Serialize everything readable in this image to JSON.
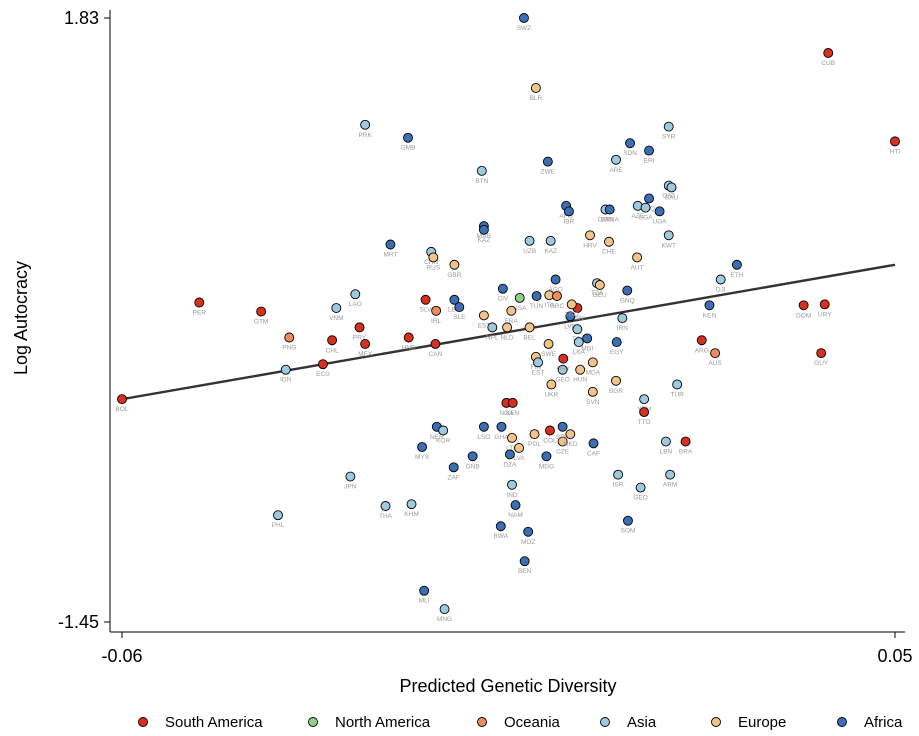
{
  "colors": {
    "South America": "#d7301f",
    "North America": "#8fd18b",
    "Oceania": "#f08c5a",
    "Asia": "#9ecae1",
    "Europe": "#f2c48a",
    "Africa": "#3a6fb5"
  },
  "chart_data": {
    "type": "scatter",
    "title": "",
    "xlabel": "Predicted Genetic Diversity",
    "ylabel": "Log Autocracy",
    "xlim": [
      -0.06,
      0.05
    ],
    "ylim": [
      -1.45,
      1.83
    ],
    "x_ticks": [
      "-0.06",
      "0.05"
    ],
    "y_ticks": [
      "1.83",
      "-1.45"
    ],
    "grid": false,
    "legend_position": "bottom",
    "legend": [
      "South America",
      "North America",
      "Oceania",
      "Asia",
      "Europe",
      "Africa"
    ],
    "fit_line": {
      "x": [
        -0.06,
        0.05
      ],
      "y": [
        -0.24,
        0.49
      ]
    },
    "points": [
      {
        "label": "BOL",
        "region": "South America",
        "x": -0.06,
        "y": -0.24
      },
      {
        "label": "PER",
        "region": "South America",
        "x": -0.049,
        "y": 0.285
      },
      {
        "label": "GTM",
        "region": "South America",
        "x": -0.0402,
        "y": 0.236
      },
      {
        "label": "PNG",
        "region": "Oceania",
        "x": -0.0362,
        "y": 0.095
      },
      {
        "label": "IDN",
        "region": "Asia",
        "x": -0.0367,
        "y": -0.08
      },
      {
        "label": "PHL",
        "region": "Asia",
        "x": -0.0378,
        "y": -0.87
      },
      {
        "label": "ECU",
        "region": "South America",
        "x": -0.0314,
        "y": -0.05
      },
      {
        "label": "CHL",
        "region": "South America",
        "x": -0.0301,
        "y": 0.08
      },
      {
        "label": "VNM",
        "region": "Asia",
        "x": -0.0295,
        "y": 0.255
      },
      {
        "label": "LAO",
        "region": "Asia",
        "x": -0.0268,
        "y": 0.33
      },
      {
        "label": "PRY",
        "region": "South America",
        "x": -0.0262,
        "y": 0.15
      },
      {
        "label": "JPN",
        "region": "Asia",
        "x": -0.0275,
        "y": -0.66
      },
      {
        "label": "MEX",
        "region": "South America",
        "x": -0.0254,
        "y": 0.06
      },
      {
        "label": "PRK",
        "region": "Asia",
        "x": -0.0254,
        "y": 1.25
      },
      {
        "label": "THA",
        "region": "Asia",
        "x": -0.0225,
        "y": -0.82
      },
      {
        "label": "MRT",
        "region": "Africa",
        "x": -0.0218,
        "y": 0.6
      },
      {
        "label": "GMB",
        "region": "Africa",
        "x": -0.0193,
        "y": 1.18
      },
      {
        "label": "HND",
        "region": "South America",
        "x": -0.0192,
        "y": 0.095
      },
      {
        "label": "SLV",
        "region": "South America",
        "x": -0.0168,
        "y": 0.3
      },
      {
        "label": "CHN",
        "region": "Asia",
        "x": -0.016,
        "y": 0.56
      },
      {
        "label": "RUS",
        "region": "Europe",
        "x": -0.0157,
        "y": 0.53
      },
      {
        "label": "IRL",
        "region": "Oceania",
        "x": -0.0153,
        "y": 0.24
      },
      {
        "label": "LBR",
        "region": "Africa",
        "x": -0.0127,
        "y": 0.3
      },
      {
        "label": "NER",
        "region": "Africa",
        "x": -0.0152,
        "y": -0.39
      },
      {
        "label": "MYS",
        "region": "Africa",
        "x": -0.0173,
        "y": -0.5
      },
      {
        "label": "KHM",
        "region": "Asia",
        "x": -0.0188,
        "y": -0.81
      },
      {
        "label": "ZAF",
        "region": "Africa",
        "x": -0.0128,
        "y": -0.61
      },
      {
        "label": "KOR",
        "region": "Asia",
        "x": -0.0143,
        "y": -0.41
      },
      {
        "label": "GNB",
        "region": "Africa",
        "x": -0.0101,
        "y": -0.55
      },
      {
        "label": "GBR",
        "region": "Europe",
        "x": -0.0127,
        "y": 0.49
      },
      {
        "label": "SLE",
        "region": "Africa",
        "x": -0.012,
        "y": 0.26
      },
      {
        "label": "CAN",
        "region": "South America",
        "x": -0.0154,
        "y": 0.06
      },
      {
        "label": "BTN",
        "region": "Asia",
        "x": -0.0088,
        "y": 1.0
      },
      {
        "label": "MAR",
        "region": "Africa",
        "x": -0.0085,
        "y": 0.7
      },
      {
        "label": "KAZ2",
        "region": "Africa",
        "x": -0.0085,
        "y": 0.68
      },
      {
        "label": "EST2",
        "region": "Europe",
        "x": -0.0085,
        "y": 0.215
      },
      {
        "label": "LSO",
        "region": "Africa",
        "x": -0.0085,
        "y": -0.39
      },
      {
        "label": "GHA",
        "region": "Africa",
        "x": -0.006,
        "y": -0.39
      },
      {
        "label": "NPL",
        "region": "Asia",
        "x": -0.0073,
        "y": 0.15
      },
      {
        "label": "NLD",
        "region": "Europe",
        "x": -0.0052,
        "y": 0.15
      },
      {
        "label": "CIV",
        "region": "Africa",
        "x": -0.0058,
        "y": 0.36
      },
      {
        "label": "NGA",
        "region": "South America",
        "x": -0.0053,
        "y": -0.26
      },
      {
        "label": "KEN2",
        "region": "South America",
        "x": -0.0044,
        "y": -0.26
      },
      {
        "label": "LTU",
        "region": "Europe",
        "x": -0.0045,
        "y": -0.45
      },
      {
        "label": "LVA",
        "region": "Europe",
        "x": -0.0035,
        "y": -0.505
      },
      {
        "label": "DZA",
        "region": "Africa",
        "x": -0.0048,
        "y": -0.54
      },
      {
        "label": "IND",
        "region": "Asia",
        "x": -0.0045,
        "y": -0.705
      },
      {
        "label": "NAM",
        "region": "Africa",
        "x": -0.004,
        "y": -0.815
      },
      {
        "label": "BWA",
        "region": "Africa",
        "x": -0.0061,
        "y": -0.93
      },
      {
        "label": "MOZ",
        "region": "Africa",
        "x": -0.0022,
        "y": -0.96
      },
      {
        "label": "BEN",
        "region": "Africa",
        "x": -0.0027,
        "y": -1.12
      },
      {
        "label": "MLI",
        "region": "Africa",
        "x": -0.017,
        "y": -1.28
      },
      {
        "label": "MNG",
        "region": "Asia",
        "x": -0.0141,
        "y": -1.38
      },
      {
        "label": "SWZ",
        "region": "Africa",
        "x": -0.0028,
        "y": 1.83
      },
      {
        "label": "BLR",
        "region": "Europe",
        "x": -0.0011,
        "y": 1.45
      },
      {
        "label": "ZWE",
        "region": "Africa",
        "x": 0.0006,
        "y": 1.05
      },
      {
        "label": "UZB",
        "region": "Asia",
        "x": -0.002,
        "y": 0.62
      },
      {
        "label": "KAZ",
        "region": "Asia",
        "x": 0.001,
        "y": 0.62
      },
      {
        "label": "USA",
        "region": "North America",
        "x": -0.0034,
        "y": 0.31
      },
      {
        "label": "FRA",
        "region": "Europe",
        "x": -0.0046,
        "y": 0.24
      },
      {
        "label": "TUN",
        "region": "Africa",
        "x": -0.001,
        "y": 0.32
      },
      {
        "label": "BEL",
        "region": "Europe",
        "x": -0.002,
        "y": 0.15
      },
      {
        "label": "AGO",
        "region": "Africa",
        "x": 0.0017,
        "y": 0.41
      },
      {
        "label": "ITA",
        "region": "Europe",
        "x": 0.0008,
        "y": 0.325
      },
      {
        "label": "GRC",
        "region": "Oceania",
        "x": 0.0019,
        "y": 0.32
      },
      {
        "label": "AFG",
        "region": "Africa",
        "x": 0.0032,
        "y": 0.81
      },
      {
        "label": "IBR",
        "region": "Africa",
        "x": 0.0036,
        "y": 0.78
      },
      {
        "label": "SWE",
        "region": "Europe",
        "x": 0.0007,
        "y": 0.06
      },
      {
        "label": "FIN",
        "region": "Europe",
        "x": -0.0011,
        "y": -0.01
      },
      {
        "label": "EST",
        "region": "Asia",
        "x": -0.0008,
        "y": -0.04
      },
      {
        "label": "GEO2",
        "region": "Asia",
        "x": 0.0027,
        "y": -0.08
      },
      {
        "label": "URY2",
        "region": "South America",
        "x": 0.0028,
        "y": -0.02
      },
      {
        "label": "UKR",
        "region": "Europe",
        "x": 0.0011,
        "y": -0.16
      },
      {
        "label": "COL",
        "region": "South America",
        "x": 0.0009,
        "y": -0.41
      },
      {
        "label": "POL",
        "region": "Europe",
        "x": -0.0013,
        "y": -0.43
      },
      {
        "label": "MDG",
        "region": "Africa",
        "x": 0.0004,
        "y": -0.55
      },
      {
        "label": "CZE",
        "region": "Europe",
        "x": 0.0027,
        "y": -0.47
      },
      {
        "label": "SRB",
        "region": "Africa",
        "x": 0.0027,
        "y": -0.39
      },
      {
        "label": "MKD",
        "region": "Europe",
        "x": 0.0038,
        "y": -0.43
      },
      {
        "label": "LSN",
        "region": "South America",
        "x": 0.0048,
        "y": 0.255
      },
      {
        "label": "LVR",
        "region": "Africa",
        "x": 0.0038,
        "y": 0.21
      },
      {
        "label": "TGO",
        "region": "Europe",
        "x": 0.004,
        "y": 0.275
      },
      {
        "label": "MDI",
        "region": "Africa",
        "x": 0.0062,
        "y": 0.09
      },
      {
        "label": "TGI",
        "region": "Asia",
        "x": 0.0048,
        "y": 0.14
      },
      {
        "label": "LKA",
        "region": "Asia",
        "x": 0.005,
        "y": 0.07
      },
      {
        "label": "HUN",
        "region": "Europe",
        "x": 0.0052,
        "y": -0.08
      },
      {
        "label": "SVN",
        "region": "Europe",
        "x": 0.007,
        "y": -0.2
      },
      {
        "label": "MDA",
        "region": "Europe",
        "x": 0.007,
        "y": -0.04
      },
      {
        "label": "CAF",
        "region": "Africa",
        "x": 0.0071,
        "y": -0.48
      },
      {
        "label": "HRV",
        "region": "Europe",
        "x": 0.0066,
        "y": 0.65
      },
      {
        "label": "CHE",
        "region": "Europe",
        "x": 0.0093,
        "y": 0.615
      },
      {
        "label": "OMN",
        "region": "Asia",
        "x": 0.0088,
        "y": 0.79
      },
      {
        "label": "CRNA",
        "region": "Africa",
        "x": 0.0094,
        "y": 0.79
      },
      {
        "label": "TZA",
        "region": "Asia",
        "x": 0.0076,
        "y": 0.39
      },
      {
        "label": "DEU",
        "region": "Europe",
        "x": 0.008,
        "y": 0.38
      },
      {
        "label": "EGY",
        "region": "Africa",
        "x": 0.0104,
        "y": 0.07
      },
      {
        "label": "BGR",
        "region": "Europe",
        "x": 0.0103,
        "y": -0.14
      },
      {
        "label": "IRN",
        "region": "Asia",
        "x": 0.0112,
        "y": 0.2
      },
      {
        "label": "GNQ",
        "region": "Africa",
        "x": 0.0119,
        "y": 0.35
      },
      {
        "label": "ARE",
        "region": "Asia",
        "x": 0.0103,
        "y": 1.06
      },
      {
        "label": "SDN",
        "region": "Africa",
        "x": 0.0123,
        "y": 1.15
      },
      {
        "label": "AZE",
        "region": "Asia",
        "x": 0.0134,
        "y": 0.81
      },
      {
        "label": "AUT",
        "region": "Europe",
        "x": 0.0133,
        "y": 0.53
      },
      {
        "label": "ERI",
        "region": "Africa",
        "x": 0.015,
        "y": 1.11
      },
      {
        "label": "IRQ",
        "region": "Africa",
        "x": 0.015,
        "y": 0.85
      },
      {
        "label": "UGA",
        "region": "Africa",
        "x": 0.0165,
        "y": 0.78
      },
      {
        "label": "SYR",
        "region": "Asia",
        "x": 0.0178,
        "y": 1.24
      },
      {
        "label": "QAT",
        "region": "Asia",
        "x": 0.0178,
        "y": 0.92
      },
      {
        "label": "SAU",
        "region": "Asia",
        "x": 0.0182,
        "y": 0.91
      },
      {
        "label": "KWT",
        "region": "Asia",
        "x": 0.0178,
        "y": 0.65
      },
      {
        "label": "UGA2",
        "region": "Asia",
        "x": 0.0145,
        "y": 0.8
      },
      {
        "label": "ISR",
        "region": "Asia",
        "x": 0.0106,
        "y": -0.65
      },
      {
        "label": "GEO",
        "region": "Asia",
        "x": 0.0138,
        "y": -0.72
      },
      {
        "label": "SOM",
        "region": "Africa",
        "x": 0.012,
        "y": -0.9
      },
      {
        "label": "YEM",
        "region": "Asia",
        "x": 0.0143,
        "y": -0.24
      },
      {
        "label": "TTO",
        "region": "South America",
        "x": 0.0143,
        "y": -0.31
      },
      {
        "label": "LBN",
        "region": "Asia",
        "x": 0.0174,
        "y": -0.47
      },
      {
        "label": "ARM",
        "region": "Asia",
        "x": 0.018,
        "y": -0.65
      },
      {
        "label": "TUR",
        "region": "Asia",
        "x": 0.019,
        "y": -0.16
      },
      {
        "label": "BRA",
        "region": "South America",
        "x": 0.0202,
        "y": -0.47
      },
      {
        "label": "ARG",
        "region": "South America",
        "x": 0.0225,
        "y": 0.08
      },
      {
        "label": "AUS",
        "region": "Oceania",
        "x": 0.0244,
        "y": 0.01
      },
      {
        "label": "KEN",
        "region": "Africa",
        "x": 0.0236,
        "y": 0.27
      },
      {
        "label": "DJI",
        "region": "Asia",
        "x": 0.0252,
        "y": 0.41
      },
      {
        "label": "ETH",
        "region": "Africa",
        "x": 0.0275,
        "y": 0.49
      },
      {
        "label": "DOM",
        "region": "South America",
        "x": 0.037,
        "y": 0.27
      },
      {
        "label": "URY",
        "region": "South America",
        "x": 0.04,
        "y": 0.275
      },
      {
        "label": "GUY",
        "region": "South America",
        "x": 0.0395,
        "y": 0.01
      },
      {
        "label": "CUB",
        "region": "South America",
        "x": 0.0405,
        "y": 1.64
      },
      {
        "label": "HTI",
        "region": "South America",
        "x": 0.05,
        "y": 1.16
      }
    ]
  }
}
